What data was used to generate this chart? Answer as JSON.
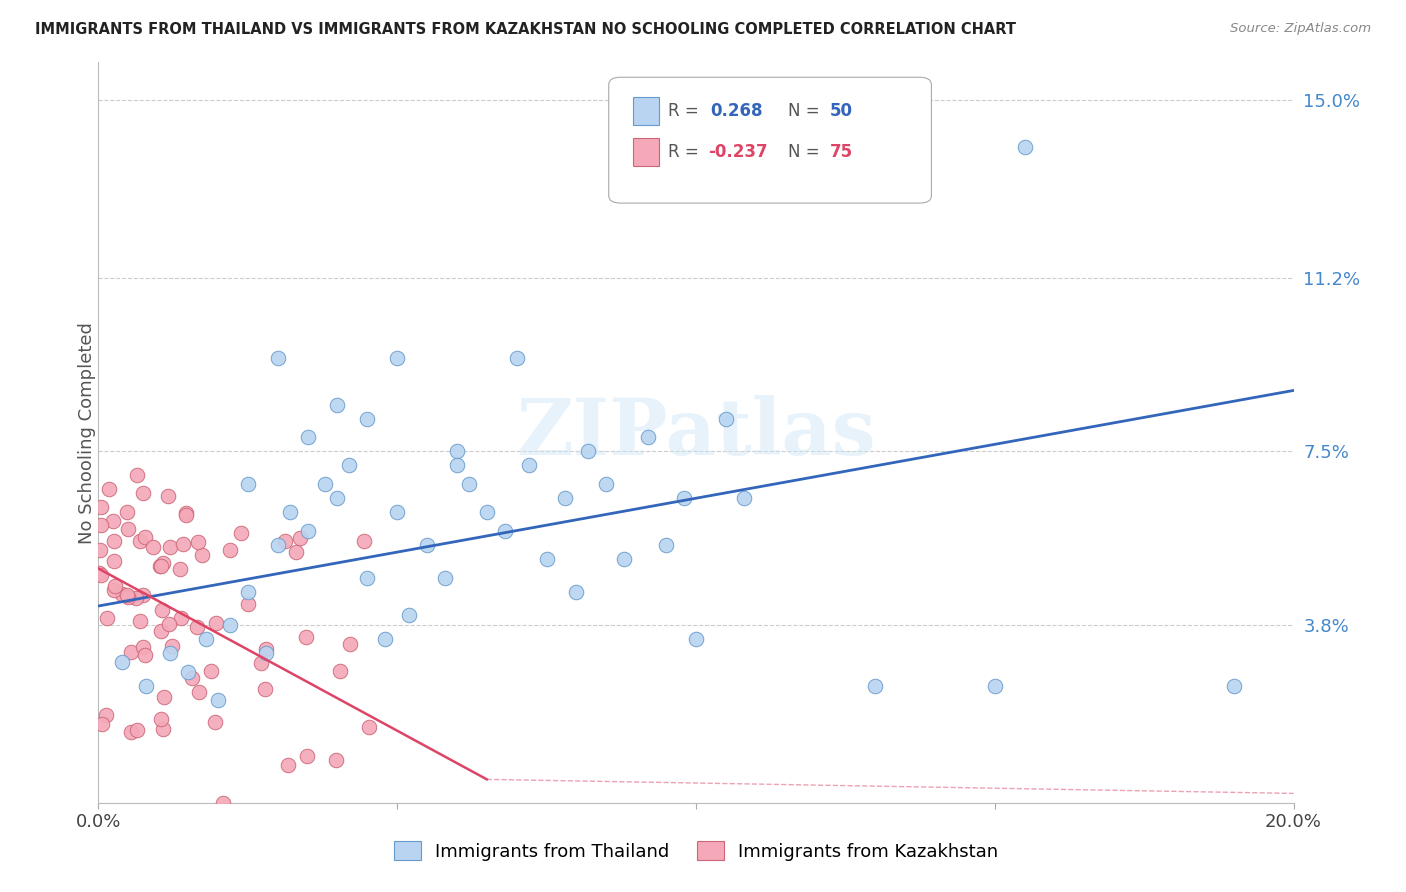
{
  "title": "IMMIGRANTS FROM THAILAND VS IMMIGRANTS FROM KAZAKHSTAN NO SCHOOLING COMPLETED CORRELATION CHART",
  "source": "Source: ZipAtlas.com",
  "ylabel": "No Schooling Completed",
  "xlim": [
    0.0,
    0.2
  ],
  "ylim": [
    0.0,
    0.158
  ],
  "y_ticks": [
    0.0,
    0.038,
    0.075,
    0.112,
    0.15
  ],
  "y_tick_labels": [
    "",
    "3.8%",
    "7.5%",
    "11.2%",
    "15.0%"
  ],
  "x_ticks": [
    0.0,
    0.05,
    0.1,
    0.15,
    0.2
  ],
  "x_tick_labels": [
    "0.0%",
    "",
    "",
    "",
    "20.0%"
  ],
  "watermark": "ZIPatlas",
  "color_thailand": "#b8d4f0",
  "edge_thailand": "#6699cc",
  "color_kazakhstan": "#f4a8b8",
  "edge_kazakhstan": "#cc6677",
  "line_color_thailand": "#3366bb",
  "line_color_kazakhstan": "#dd4466",
  "background_color": "#ffffff",
  "grid_color": "#cccccc",
  "th_line_x0": 0.0,
  "th_line_y0": 0.042,
  "th_line_x1": 0.2,
  "th_line_y1": 0.088,
  "kz_line_x0": 0.0,
  "kz_line_y0": 0.05,
  "kz_line_x1": 0.065,
  "kz_line_y1": 0.005,
  "legend_r1": "0.268",
  "legend_n1": "50",
  "legend_r2": "-0.237",
  "legend_n2": "75"
}
